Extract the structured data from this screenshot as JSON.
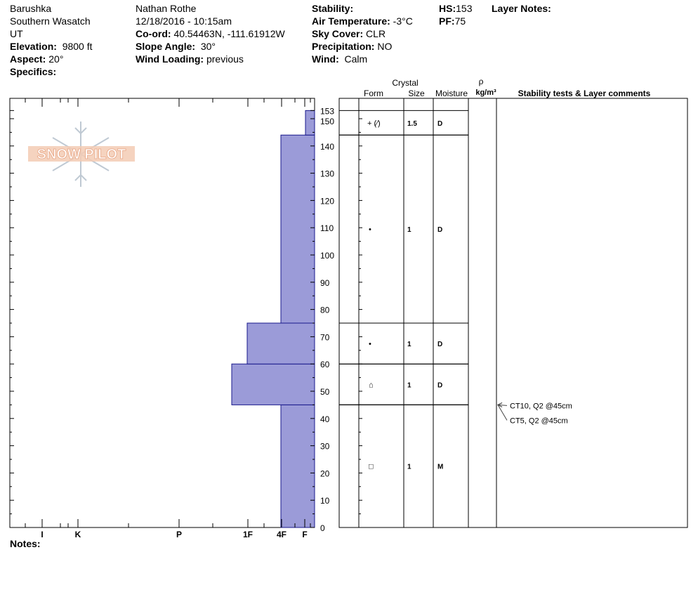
{
  "header": {
    "col1": {
      "site": "Barushka",
      "range": "Southern Wasatch",
      "state": "UT",
      "elevation_label": "Elevation:",
      "elevation": "9800 ft",
      "aspect_label": "Aspect:",
      "aspect": "20°",
      "specifics_label": "Specifics:"
    },
    "col2": {
      "observer": "Nathan Rothe",
      "datetime": "12/18/2016 - 10:15am",
      "coord_label": "Co-ord:",
      "coord": "40.54463N, -111.61912W",
      "slope_label": "Slope Angle:",
      "slope": "30°",
      "wind_loading_label": "Wind Loading:",
      "wind_loading": "previous"
    },
    "col3": {
      "stability_label": "Stability:",
      "stability": "",
      "air_temp_label": "Air Temperature:",
      "air_temp": "-3°C",
      "sky_label": "Sky Cover:",
      "sky": "CLR",
      "precip_label": "Precipitation:",
      "precip": "NO",
      "wind_label": "Wind:",
      "wind": "Calm"
    },
    "col4": {
      "hs_label": "HS:",
      "hs": "153",
      "pf_label": "PF:",
      "pf": "75"
    },
    "col5": {
      "layer_notes_label": "Layer Notes:"
    }
  },
  "notes_label": "Notes:",
  "logo_text": "SNOW PILOT",
  "table_headers": {
    "crystal": "Crystal",
    "form": "Form",
    "size": "Size",
    "moisture": "Moisture",
    "rho": "ρ",
    "density_unit": "kg/m³",
    "tests": "Stability tests & Layer comments"
  },
  "chart_data": {
    "type": "bar",
    "title": "",
    "ylim": [
      0,
      153
    ],
    "y_ticks": [
      "0",
      "10",
      "20",
      "30",
      "40",
      "50",
      "60",
      "70",
      "80",
      "90",
      "100",
      "110",
      "120",
      "130",
      "140",
      "150",
      "153"
    ],
    "hardness_scale": [
      "I",
      "K",
      "P",
      "1F",
      "4F",
      "F"
    ],
    "hardness_profile": [
      {
        "bottom": 0,
        "top": 45,
        "hardness": "4F"
      },
      {
        "bottom": 45,
        "top": 60,
        "hardness": "1F+"
      },
      {
        "bottom": 60,
        "top": 75,
        "hardness": "1F"
      },
      {
        "bottom": 75,
        "top": 144,
        "hardness": "4F"
      },
      {
        "bottom": 144,
        "top": 153,
        "hardness": "F+"
      }
    ],
    "layers": [
      {
        "bottom": 144,
        "top": 153,
        "form": "+ (⁄)",
        "size": "1.5",
        "moisture": "D"
      },
      {
        "bottom": 75,
        "top": 144,
        "form": "•",
        "size": "1",
        "moisture": "D"
      },
      {
        "bottom": 60,
        "top": 75,
        "form": "•",
        "size": "1",
        "moisture": "D"
      },
      {
        "bottom": 45,
        "top": 60,
        "form": "⌂",
        "size": "1",
        "moisture": "D"
      },
      {
        "bottom": 0,
        "top": 45,
        "form": "□",
        "size": "1",
        "moisture": "M"
      }
    ],
    "stability_tests": [
      {
        "text": "CT10, Q2 @45cm",
        "depth": 45
      },
      {
        "text": "CT5, Q2 @45cm",
        "depth": 45
      }
    ],
    "bar_color": "#9b9bd8"
  }
}
